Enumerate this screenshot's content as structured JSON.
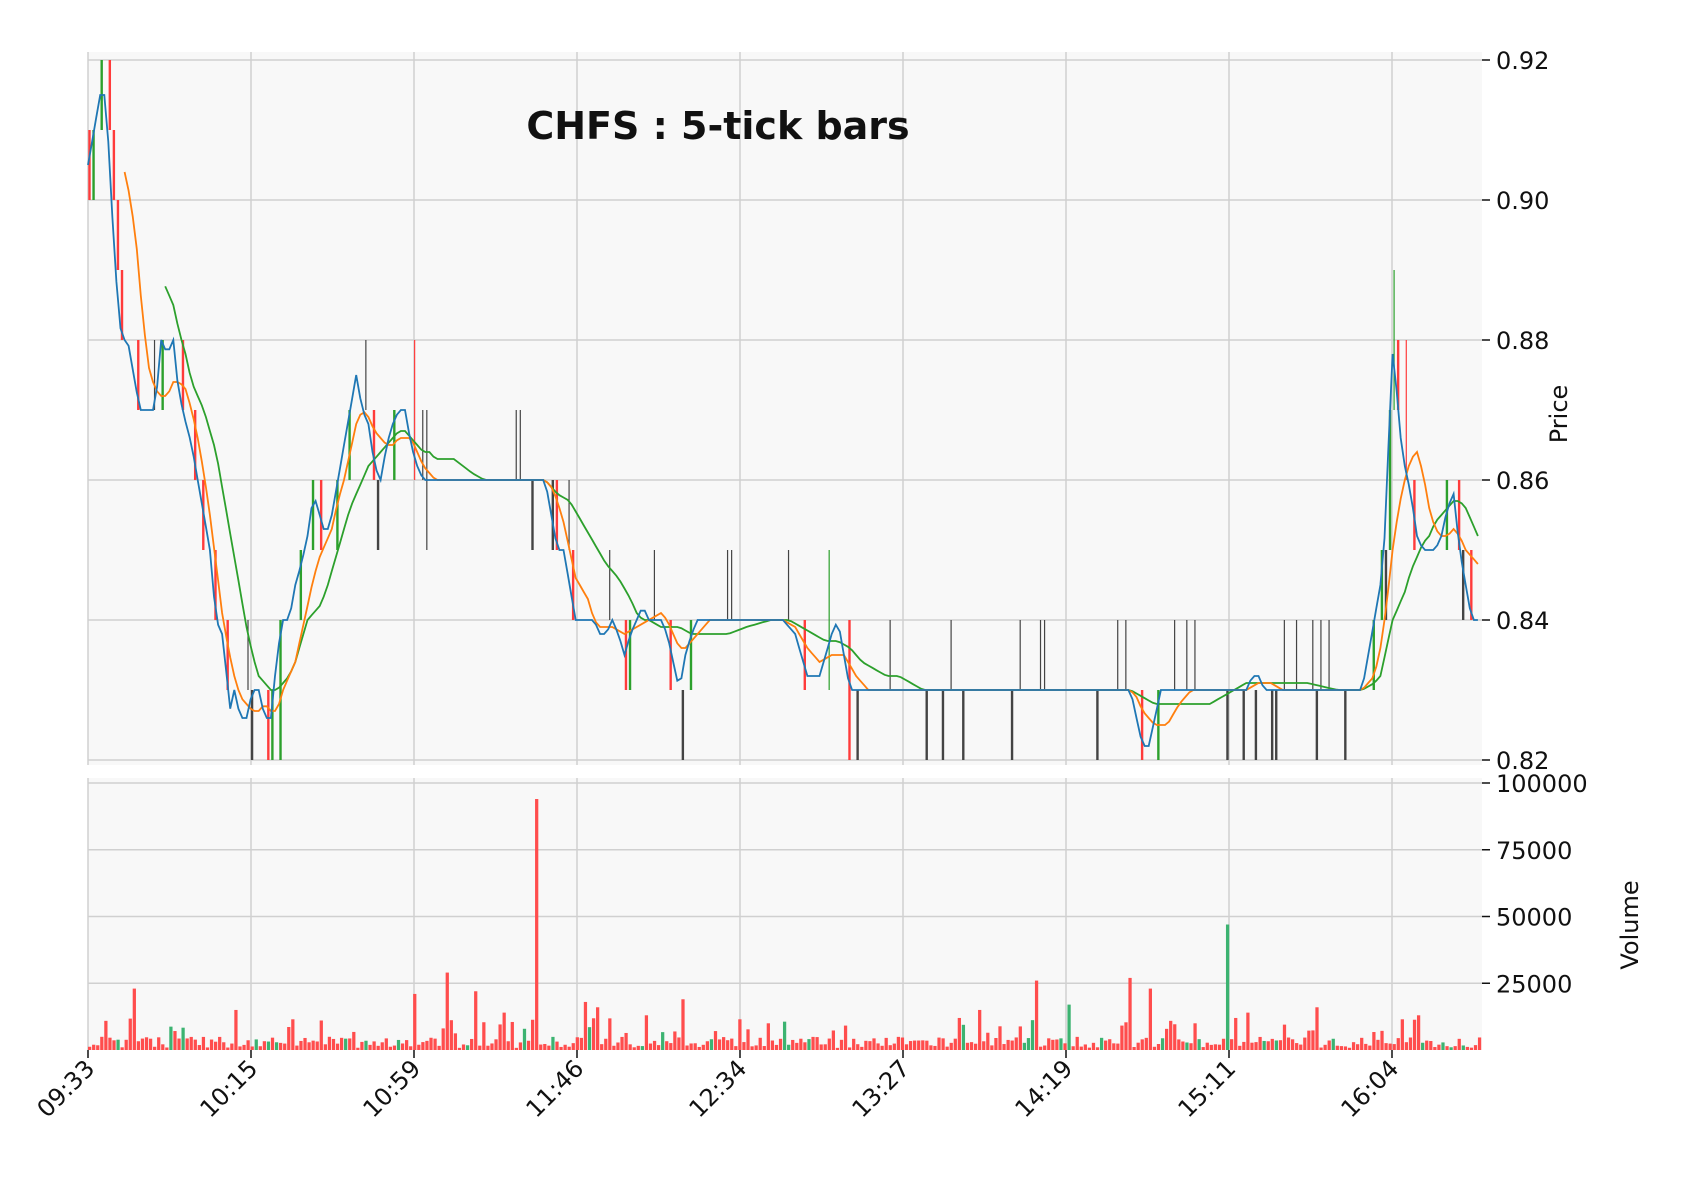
{
  "chart_data": {
    "type": "candlestick",
    "title": "CHFS : 5-tick bars",
    "ylabel": "Price",
    "volume_label": "Volume",
    "price_ylim": [
      0.82,
      0.92
    ],
    "price_ticks": [
      "0.82",
      "0.84",
      "0.86",
      "0.88",
      "0.90",
      "0.92"
    ],
    "volume_ylim": [
      0,
      100000
    ],
    "volume_ticks": [
      "25000",
      "50000",
      "75000",
      "100000"
    ],
    "x_ticks": [
      "09:33",
      "10:15",
      "10:59",
      "11:46",
      "12:34",
      "13:27",
      "14:19",
      "15:11",
      "16:04"
    ],
    "bar_count": 343,
    "moving_average_windows": [
      3,
      10,
      20
    ],
    "colors": {
      "up": "#2ca02c",
      "down": "#ff3b3b",
      "ma_short": "#1f77b4",
      "ma_mid": "#ff7f0e",
      "ma_long": "#2ca02c",
      "volume_up": "#3cb371",
      "volume_down": "#ff4d4d",
      "plot_bg": "#f8f8f8",
      "grid": "#d0d0d0"
    },
    "close_path": [
      [
        0,
        0.905
      ],
      [
        2,
        0.91
      ],
      [
        4,
        0.915
      ],
      [
        6,
        0.915
      ],
      [
        7,
        0.905
      ],
      [
        9,
        0.89
      ],
      [
        11,
        0.88
      ],
      [
        13,
        0.88
      ],
      [
        15,
        0.875
      ],
      [
        17,
        0.87
      ],
      [
        20,
        0.87
      ],
      [
        22,
        0.87
      ],
      [
        24,
        0.88
      ],
      [
        26,
        0.878
      ],
      [
        28,
        0.88
      ],
      [
        29,
        0.875
      ],
      [
        31,
        0.87
      ],
      [
        34,
        0.865
      ],
      [
        36,
        0.86
      ],
      [
        38,
        0.855
      ],
      [
        40,
        0.85
      ],
      [
        42,
        0.84
      ],
      [
        44,
        0.838
      ],
      [
        46,
        0.83
      ],
      [
        47,
        0.826
      ],
      [
        48,
        0.83
      ],
      [
        50,
        0.826
      ],
      [
        52,
        0.826
      ],
      [
        54,
        0.83
      ],
      [
        56,
        0.83
      ],
      [
        58,
        0.826
      ],
      [
        60,
        0.826
      ],
      [
        62,
        0.835
      ],
      [
        64,
        0.84
      ],
      [
        66,
        0.84
      ],
      [
        68,
        0.845
      ],
      [
        70,
        0.848
      ],
      [
        72,
        0.852
      ],
      [
        74,
        0.858
      ],
      [
        76,
        0.855
      ],
      [
        78,
        0.852
      ],
      [
        80,
        0.855
      ],
      [
        82,
        0.86
      ],
      [
        84,
        0.865
      ],
      [
        86,
        0.87
      ],
      [
        88,
        0.875
      ],
      [
        90,
        0.87
      ],
      [
        92,
        0.868
      ],
      [
        94,
        0.862
      ],
      [
        96,
        0.86
      ],
      [
        98,
        0.865
      ],
      [
        100,
        0.868
      ],
      [
        102,
        0.87
      ],
      [
        104,
        0.87
      ],
      [
        106,
        0.865
      ],
      [
        108,
        0.862
      ],
      [
        110,
        0.86
      ],
      [
        114,
        0.86
      ],
      [
        120,
        0.86
      ],
      [
        130,
        0.86
      ],
      [
        140,
        0.86
      ],
      [
        150,
        0.86
      ],
      [
        152,
        0.855
      ],
      [
        154,
        0.85
      ],
      [
        156,
        0.85
      ],
      [
        158,
        0.845
      ],
      [
        160,
        0.84
      ],
      [
        166,
        0.84
      ],
      [
        168,
        0.838
      ],
      [
        170,
        0.838
      ],
      [
        172,
        0.84
      ],
      [
        174,
        0.838
      ],
      [
        176,
        0.835
      ],
      [
        178,
        0.838
      ],
      [
        180,
        0.84
      ],
      [
        182,
        0.842
      ],
      [
        184,
        0.84
      ],
      [
        188,
        0.84
      ],
      [
        190,
        0.838
      ],
      [
        192,
        0.834
      ],
      [
        194,
        0.83
      ],
      [
        196,
        0.835
      ],
      [
        198,
        0.838
      ],
      [
        200,
        0.84
      ],
      [
        204,
        0.84
      ],
      [
        212,
        0.84
      ],
      [
        220,
        0.84
      ],
      [
        228,
        0.84
      ],
      [
        232,
        0.838
      ],
      [
        234,
        0.835
      ],
      [
        236,
        0.832
      ],
      [
        240,
        0.832
      ],
      [
        242,
        0.835
      ],
      [
        244,
        0.838
      ],
      [
        246,
        0.84
      ],
      [
        248,
        0.835
      ],
      [
        250,
        0.83
      ],
      [
        256,
        0.83
      ],
      [
        262,
        0.83
      ],
      [
        275,
        0.83
      ],
      [
        290,
        0.83
      ],
      [
        310,
        0.83
      ],
      [
        330,
        0.83
      ],
      [
        342,
        0.83
      ],
      [
        344,
        0.826
      ],
      [
        346,
        0.822
      ],
      [
        348,
        0.822
      ],
      [
        350,
        0.826
      ],
      [
        352,
        0.83
      ],
      [
        356,
        0.83
      ],
      [
        362,
        0.83
      ],
      [
        372,
        0.83
      ],
      [
        380,
        0.83
      ],
      [
        382,
        0.832
      ],
      [
        384,
        0.832
      ],
      [
        386,
        0.83
      ],
      [
        392,
        0.83
      ],
      [
        400,
        0.83
      ],
      [
        410,
        0.83
      ],
      [
        418,
        0.83
      ],
      [
        420,
        0.835
      ],
      [
        422,
        0.84
      ],
      [
        424,
        0.845
      ],
      [
        426,
        0.855
      ],
      [
        427,
        0.87
      ],
      [
        428,
        0.878
      ],
      [
        429,
        0.875
      ],
      [
        430,
        0.868
      ],
      [
        432,
        0.862
      ],
      [
        434,
        0.858
      ],
      [
        436,
        0.852
      ],
      [
        438,
        0.85
      ],
      [
        440,
        0.85
      ],
      [
        442,
        0.85
      ],
      [
        444,
        0.852
      ],
      [
        446,
        0.856
      ],
      [
        448,
        0.858
      ],
      [
        450,
        0.85
      ],
      [
        452,
        0.845
      ],
      [
        454,
        0.84
      ],
      [
        456,
        0.84
      ]
    ],
    "ma_mid_path": [
      [
        12,
        0.904
      ],
      [
        14,
        0.9
      ],
      [
        16,
        0.893
      ],
      [
        18,
        0.883
      ],
      [
        20,
        0.876
      ],
      [
        22,
        0.873
      ],
      [
        24,
        0.872
      ],
      [
        26,
        0.872
      ],
      [
        28,
        0.874
      ],
      [
        30,
        0.874
      ],
      [
        32,
        0.873
      ],
      [
        34,
        0.87
      ],
      [
        36,
        0.866
      ],
      [
        38,
        0.861
      ],
      [
        40,
        0.855
      ],
      [
        42,
        0.848
      ],
      [
        44,
        0.841
      ],
      [
        46,
        0.836
      ],
      [
        48,
        0.832
      ],
      [
        50,
        0.829
      ],
      [
        52,
        0.828
      ],
      [
        54,
        0.827
      ],
      [
        56,
        0.827
      ],
      [
        58,
        0.828
      ],
      [
        60,
        0.827
      ],
      [
        62,
        0.827
      ],
      [
        64,
        0.83
      ],
      [
        66,
        0.832
      ],
      [
        68,
        0.834
      ],
      [
        70,
        0.838
      ],
      [
        72,
        0.842
      ],
      [
        74,
        0.846
      ],
      [
        76,
        0.849
      ],
      [
        78,
        0.851
      ],
      [
        80,
        0.853
      ],
      [
        82,
        0.857
      ],
      [
        84,
        0.86
      ],
      [
        86,
        0.864
      ],
      [
        88,
        0.868
      ],
      [
        90,
        0.87
      ],
      [
        92,
        0.869
      ],
      [
        94,
        0.867
      ],
      [
        96,
        0.866
      ],
      [
        98,
        0.865
      ],
      [
        100,
        0.865
      ],
      [
        102,
        0.866
      ],
      [
        104,
        0.866
      ],
      [
        106,
        0.866
      ],
      [
        108,
        0.864
      ],
      [
        110,
        0.862
      ],
      [
        114,
        0.86
      ],
      [
        130,
        0.86
      ],
      [
        150,
        0.86
      ],
      [
        152,
        0.859
      ],
      [
        154,
        0.857
      ],
      [
        156,
        0.854
      ],
      [
        158,
        0.85
      ],
      [
        160,
        0.846
      ],
      [
        164,
        0.843
      ],
      [
        166,
        0.84
      ],
      [
        168,
        0.839
      ],
      [
        172,
        0.839
      ],
      [
        176,
        0.838
      ],
      [
        180,
        0.839
      ],
      [
        184,
        0.84
      ],
      [
        188,
        0.841
      ],
      [
        190,
        0.84
      ],
      [
        192,
        0.838
      ],
      [
        194,
        0.836
      ],
      [
        196,
        0.836
      ],
      [
        198,
        0.837
      ],
      [
        200,
        0.838
      ],
      [
        204,
        0.84
      ],
      [
        212,
        0.84
      ],
      [
        228,
        0.84
      ],
      [
        232,
        0.839
      ],
      [
        236,
        0.836
      ],
      [
        240,
        0.834
      ],
      [
        244,
        0.835
      ],
      [
        248,
        0.835
      ],
      [
        252,
        0.832
      ],
      [
        256,
        0.83
      ],
      [
        275,
        0.83
      ],
      [
        310,
        0.83
      ],
      [
        342,
        0.83
      ],
      [
        344,
        0.829
      ],
      [
        346,
        0.827
      ],
      [
        350,
        0.825
      ],
      [
        354,
        0.825
      ],
      [
        358,
        0.828
      ],
      [
        362,
        0.83
      ],
      [
        372,
        0.83
      ],
      [
        380,
        0.83
      ],
      [
        384,
        0.831
      ],
      [
        388,
        0.831
      ],
      [
        392,
        0.83
      ],
      [
        410,
        0.83
      ],
      [
        418,
        0.83
      ],
      [
        422,
        0.832
      ],
      [
        424,
        0.836
      ],
      [
        426,
        0.842
      ],
      [
        428,
        0.85
      ],
      [
        430,
        0.856
      ],
      [
        432,
        0.86
      ],
      [
        434,
        0.863
      ],
      [
        436,
        0.864
      ],
      [
        438,
        0.861
      ],
      [
        440,
        0.856
      ],
      [
        442,
        0.853
      ],
      [
        444,
        0.852
      ],
      [
        446,
        0.852
      ],
      [
        448,
        0.853
      ],
      [
        450,
        0.852
      ],
      [
        452,
        0.85
      ],
      [
        454,
        0.849
      ],
      [
        456,
        0.848
      ]
    ],
    "ma_long_path": [
      [
        25,
        0.888
      ],
      [
        28,
        0.885
      ],
      [
        30,
        0.881
      ],
      [
        32,
        0.878
      ],
      [
        34,
        0.874
      ],
      [
        36,
        0.872
      ],
      [
        38,
        0.87
      ],
      [
        40,
        0.867
      ],
      [
        42,
        0.864
      ],
      [
        44,
        0.859
      ],
      [
        46,
        0.854
      ],
      [
        48,
        0.849
      ],
      [
        50,
        0.844
      ],
      [
        52,
        0.839
      ],
      [
        54,
        0.835
      ],
      [
        56,
        0.832
      ],
      [
        58,
        0.831
      ],
      [
        60,
        0.83
      ],
      [
        62,
        0.83
      ],
      [
        64,
        0.831
      ],
      [
        66,
        0.832
      ],
      [
        68,
        0.834
      ],
      [
        70,
        0.837
      ],
      [
        72,
        0.84
      ],
      [
        74,
        0.841
      ],
      [
        76,
        0.842
      ],
      [
        78,
        0.844
      ],
      [
        80,
        0.847
      ],
      [
        82,
        0.85
      ],
      [
        84,
        0.853
      ],
      [
        86,
        0.856
      ],
      [
        88,
        0.858
      ],
      [
        90,
        0.86
      ],
      [
        92,
        0.862
      ],
      [
        94,
        0.863
      ],
      [
        96,
        0.864
      ],
      [
        98,
        0.865
      ],
      [
        100,
        0.866
      ],
      [
        102,
        0.867
      ],
      [
        104,
        0.867
      ],
      [
        106,
        0.866
      ],
      [
        108,
        0.865
      ],
      [
        110,
        0.864
      ],
      [
        112,
        0.864
      ],
      [
        114,
        0.863
      ],
      [
        120,
        0.863
      ],
      [
        126,
        0.861
      ],
      [
        130,
        0.86
      ],
      [
        150,
        0.86
      ],
      [
        154,
        0.858
      ],
      [
        158,
        0.857
      ],
      [
        162,
        0.854
      ],
      [
        166,
        0.851
      ],
      [
        170,
        0.848
      ],
      [
        174,
        0.846
      ],
      [
        178,
        0.843
      ],
      [
        180,
        0.841
      ],
      [
        182,
        0.84
      ],
      [
        184,
        0.84
      ],
      [
        188,
        0.839
      ],
      [
        194,
        0.839
      ],
      [
        198,
        0.838
      ],
      [
        202,
        0.838
      ],
      [
        206,
        0.838
      ],
      [
        210,
        0.838
      ],
      [
        216,
        0.839
      ],
      [
        224,
        0.84
      ],
      [
        230,
        0.84
      ],
      [
        234,
        0.839
      ],
      [
        238,
        0.838
      ],
      [
        242,
        0.837
      ],
      [
        246,
        0.837
      ],
      [
        250,
        0.836
      ],
      [
        254,
        0.834
      ],
      [
        258,
        0.833
      ],
      [
        262,
        0.832
      ],
      [
        266,
        0.832
      ],
      [
        270,
        0.831
      ],
      [
        274,
        0.83
      ],
      [
        290,
        0.83
      ],
      [
        310,
        0.83
      ],
      [
        342,
        0.83
      ],
      [
        346,
        0.829
      ],
      [
        350,
        0.828
      ],
      [
        356,
        0.828
      ],
      [
        362,
        0.828
      ],
      [
        368,
        0.828
      ],
      [
        372,
        0.829
      ],
      [
        376,
        0.83
      ],
      [
        380,
        0.831
      ],
      [
        384,
        0.831
      ],
      [
        390,
        0.831
      ],
      [
        400,
        0.831
      ],
      [
        410,
        0.83
      ],
      [
        418,
        0.83
      ],
      [
        422,
        0.831
      ],
      [
        424,
        0.832
      ],
      [
        426,
        0.836
      ],
      [
        428,
        0.84
      ],
      [
        430,
        0.842
      ],
      [
        432,
        0.844
      ],
      [
        434,
        0.847
      ],
      [
        436,
        0.849
      ],
      [
        438,
        0.851
      ],
      [
        440,
        0.852
      ],
      [
        442,
        0.854
      ],
      [
        444,
        0.855
      ],
      [
        446,
        0.856
      ],
      [
        448,
        0.857
      ],
      [
        450,
        0.857
      ],
      [
        452,
        0.856
      ],
      [
        454,
        0.854
      ],
      [
        456,
        0.852
      ]
    ],
    "volume_spikes": [
      [
        15,
        23000
      ],
      [
        48,
        15000
      ],
      [
        66,
        11500
      ],
      [
        106,
        21000
      ],
      [
        117,
        29000
      ],
      [
        127,
        22000
      ],
      [
        136,
        14000
      ],
      [
        146,
        94000
      ],
      [
        162,
        18000
      ],
      [
        167,
        16000
      ],
      [
        183,
        13000
      ],
      [
        195,
        19000
      ],
      [
        213,
        11500
      ],
      [
        223,
        10000
      ],
      [
        285,
        12000
      ],
      [
        292,
        15000
      ],
      [
        310,
        26000
      ],
      [
        321,
        17000
      ],
      [
        341,
        27000
      ],
      [
        348,
        23000
      ],
      [
        363,
        10000
      ],
      [
        373,
        47000
      ],
      [
        376,
        12000
      ],
      [
        380,
        14000
      ],
      [
        402,
        16000
      ],
      [
        430,
        11500
      ],
      [
        436,
        13000
      ]
    ]
  }
}
